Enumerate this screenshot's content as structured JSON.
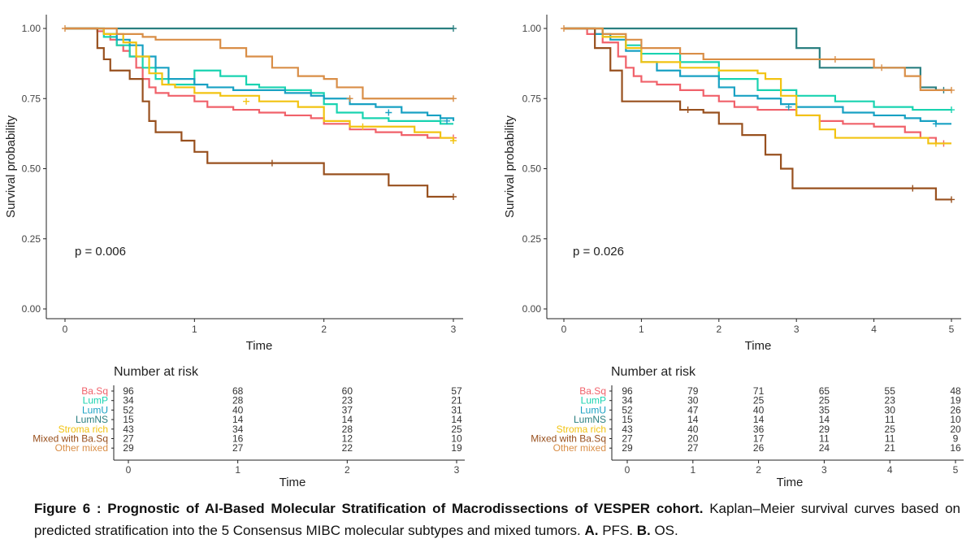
{
  "chart_data": [
    {
      "type": "line",
      "panel": "A",
      "annotation": "p = 0.006",
      "xlabel": "Time",
      "ylabel": "Survival probability",
      "xlim": [
        0,
        3
      ],
      "ylim": [
        0,
        1
      ],
      "xticks": [
        "0",
        "1",
        "2",
        "3"
      ],
      "yticks": [
        "0.00",
        "0.25",
        "0.50",
        "0.75",
        "1.00"
      ],
      "grid": false,
      "step": true,
      "series": [
        {
          "name": "Ba.Sq",
          "color": "#f0616a",
          "x": [
            0,
            0.25,
            0.3,
            0.35,
            0.4,
            0.45,
            0.5,
            0.55,
            0.6,
            0.65,
            0.7,
            0.8,
            1.0,
            1.1,
            1.3,
            1.5,
            1.7,
            1.9,
            2.0,
            2.2,
            2.4,
            2.6,
            2.8,
            3.0
          ],
          "y": [
            1.0,
            0.99,
            0.98,
            0.96,
            0.94,
            0.92,
            0.9,
            0.86,
            0.82,
            0.79,
            0.77,
            0.76,
            0.74,
            0.72,
            0.71,
            0.7,
            0.69,
            0.68,
            0.66,
            0.64,
            0.63,
            0.62,
            0.61,
            0.61
          ],
          "censor": [
            [
              3.0,
              0.61
            ]
          ]
        },
        {
          "name": "LumP",
          "color": "#19d3b0",
          "x": [
            0,
            0.3,
            0.4,
            0.5,
            0.6,
            0.7,
            0.8,
            1.0,
            1.2,
            1.4,
            1.5,
            1.7,
            1.9,
            2.0,
            2.1,
            2.3,
            2.5,
            2.7,
            2.9,
            3.0
          ],
          "y": [
            1.0,
            0.97,
            0.94,
            0.9,
            0.86,
            0.82,
            0.8,
            0.85,
            0.83,
            0.8,
            0.79,
            0.78,
            0.77,
            0.73,
            0.7,
            0.68,
            0.67,
            0.67,
            0.66,
            0.66
          ],
          "censor": [
            [
              2.9,
              0.67
            ]
          ]
        },
        {
          "name": "LumU",
          "color": "#18a1c3",
          "x": [
            0,
            0.3,
            0.4,
            0.5,
            0.6,
            0.7,
            0.8,
            1.0,
            1.1,
            1.3,
            1.5,
            1.7,
            1.9,
            2.0,
            2.2,
            2.4,
            2.6,
            2.8,
            2.9,
            3.0
          ],
          "y": [
            1.0,
            0.98,
            0.96,
            0.94,
            0.9,
            0.86,
            0.82,
            0.8,
            0.79,
            0.78,
            0.78,
            0.77,
            0.76,
            0.75,
            0.73,
            0.72,
            0.7,
            0.69,
            0.68,
            0.67
          ],
          "censor": [
            [
              2.5,
              0.7
            ],
            [
              2.95,
              0.67
            ]
          ]
        },
        {
          "name": "LumNS",
          "color": "#2a7f80",
          "x": [
            0,
            3.0
          ],
          "y": [
            1.0,
            1.0
          ],
          "censor": [
            [
              3.0,
              1.0
            ]
          ]
        },
        {
          "name": "Stroma rich",
          "color": "#f2c311",
          "x": [
            0,
            0.3,
            0.45,
            0.55,
            0.65,
            0.75,
            0.85,
            1.0,
            1.2,
            1.5,
            1.8,
            2.0,
            2.2,
            2.5,
            2.7,
            2.9,
            3.0
          ],
          "y": [
            1.0,
            0.98,
            0.95,
            0.9,
            0.84,
            0.8,
            0.79,
            0.77,
            0.76,
            0.74,
            0.72,
            0.67,
            0.65,
            0.65,
            0.63,
            0.61,
            0.6
          ],
          "censor": [
            [
              1.4,
              0.74
            ],
            [
              2.3,
              0.65
            ],
            [
              3.0,
              0.6
            ]
          ]
        },
        {
          "name": "Mixed with Ba.Sq",
          "color": "#98501e",
          "x": [
            0,
            0.25,
            0.3,
            0.35,
            0.5,
            0.6,
            0.65,
            0.7,
            0.9,
            1.0,
            1.1,
            1.3,
            1.5,
            1.8,
            2.0,
            2.3,
            2.5,
            2.8,
            3.0
          ],
          "y": [
            1.0,
            0.93,
            0.89,
            0.85,
            0.82,
            0.74,
            0.67,
            0.63,
            0.6,
            0.56,
            0.52,
            0.52,
            0.52,
            0.52,
            0.48,
            0.48,
            0.44,
            0.4,
            0.4
          ],
          "censor": [
            [
              1.6,
              0.52
            ],
            [
              3.0,
              0.4
            ]
          ]
        },
        {
          "name": "Other mixed",
          "color": "#d98e47",
          "x": [
            0,
            0.4,
            0.6,
            0.7,
            1.0,
            1.2,
            1.4,
            1.6,
            1.8,
            2.0,
            2.1,
            2.3,
            2.5,
            3.0
          ],
          "y": [
            1.0,
            0.98,
            0.97,
            0.96,
            0.96,
            0.93,
            0.9,
            0.86,
            0.83,
            0.82,
            0.79,
            0.75,
            0.75,
            0.75
          ],
          "censor": [
            [
              2.2,
              0.75
            ],
            [
              3.0,
              0.75
            ]
          ]
        }
      ],
      "risk_table": {
        "title": "Number at risk",
        "xlabel": "Time",
        "times": [
          "0",
          "1",
          "2",
          "3"
        ],
        "rows": [
          {
            "label": "Ba.Sq",
            "color": "#f0616a",
            "values": [
              "96",
              "68",
              "60",
              "57"
            ]
          },
          {
            "label": "LumP",
            "color": "#19d3b0",
            "values": [
              "34",
              "28",
              "23",
              "21"
            ]
          },
          {
            "label": "LumU",
            "color": "#18a1c3",
            "values": [
              "52",
              "40",
              "37",
              "31"
            ]
          },
          {
            "label": "LumNS",
            "color": "#2a7f80",
            "values": [
              "15",
              "14",
              "14",
              "14"
            ]
          },
          {
            "label": "Stroma rich",
            "color": "#f2c311",
            "values": [
              "43",
              "34",
              "28",
              "25"
            ]
          },
          {
            "label": "Mixed with Ba.Sq",
            "color": "#98501e",
            "values": [
              "27",
              "16",
              "12",
              "10"
            ]
          },
          {
            "label": "Other mixed",
            "color": "#d98e47",
            "values": [
              "29",
              "27",
              "22",
              "19"
            ]
          }
        ]
      }
    },
    {
      "type": "line",
      "panel": "B",
      "annotation": "p = 0.026",
      "xlabel": "Time",
      "ylabel": "Survival probability",
      "xlim": [
        0,
        5
      ],
      "ylim": [
        0,
        1
      ],
      "xticks": [
        "0",
        "1",
        "2",
        "3",
        "4",
        "5"
      ],
      "yticks": [
        "0.00",
        "0.25",
        "0.50",
        "0.75",
        "1.00"
      ],
      "grid": false,
      "step": true,
      "series": [
        {
          "name": "Ba.Sq",
          "color": "#f0616a",
          "x": [
            0,
            0.3,
            0.5,
            0.7,
            0.8,
            0.9,
            1.0,
            1.2,
            1.5,
            1.8,
            2.0,
            2.2,
            2.5,
            3.0,
            3.3,
            3.6,
            4.0,
            4.4,
            4.6,
            4.8,
            5.0
          ],
          "y": [
            1.0,
            0.98,
            0.95,
            0.9,
            0.86,
            0.83,
            0.81,
            0.8,
            0.78,
            0.76,
            0.74,
            0.72,
            0.71,
            0.69,
            0.67,
            0.66,
            0.65,
            0.63,
            0.61,
            0.59,
            0.59
          ],
          "censor": [
            [
              4.9,
              0.59
            ]
          ]
        },
        {
          "name": "LumP",
          "color": "#19d3b0",
          "x": [
            0,
            0.5,
            0.8,
            1.0,
            1.5,
            2.0,
            2.5,
            3.0,
            3.5,
            4.0,
            4.5,
            5.0
          ],
          "y": [
            1.0,
            0.97,
            0.94,
            0.91,
            0.88,
            0.82,
            0.78,
            0.76,
            0.74,
            0.72,
            0.71,
            0.71
          ],
          "censor": [
            [
              5.0,
              0.71
            ]
          ]
        },
        {
          "name": "LumU",
          "color": "#18a1c3",
          "x": [
            0,
            0.4,
            0.6,
            0.8,
            1.0,
            1.2,
            1.5,
            2.0,
            2.2,
            2.5,
            2.8,
            3.0,
            3.3,
            3.6,
            4.0,
            4.4,
            4.6,
            4.8,
            5.0
          ],
          "y": [
            1.0,
            0.98,
            0.96,
            0.92,
            0.88,
            0.85,
            0.83,
            0.79,
            0.76,
            0.75,
            0.73,
            0.72,
            0.72,
            0.7,
            0.69,
            0.68,
            0.67,
            0.66,
            0.66
          ],
          "censor": [
            [
              2.9,
              0.72
            ],
            [
              4.8,
              0.66
            ]
          ]
        },
        {
          "name": "LumNS",
          "color": "#2a7f80",
          "x": [
            0,
            3.0,
            3.3,
            4.6,
            4.8,
            5.0
          ],
          "y": [
            1.0,
            0.93,
            0.86,
            0.79,
            0.78,
            0.78
          ],
          "censor": [
            [
              4.9,
              0.78
            ]
          ]
        },
        {
          "name": "Stroma rich",
          "color": "#f2c311",
          "x": [
            0,
            0.5,
            0.8,
            1.0,
            1.5,
            2.0,
            2.5,
            2.6,
            2.8,
            3.0,
            3.3,
            3.5,
            3.8,
            4.0,
            4.4,
            4.7,
            5.0
          ],
          "y": [
            1.0,
            0.97,
            0.93,
            0.88,
            0.86,
            0.85,
            0.84,
            0.82,
            0.76,
            0.69,
            0.64,
            0.61,
            0.61,
            0.61,
            0.61,
            0.59,
            0.59
          ],
          "censor": [
            [
              4.8,
              0.59
            ]
          ]
        },
        {
          "name": "Mixed with Ba.Sq",
          "color": "#98501e",
          "x": [
            0,
            0.4,
            0.6,
            0.75,
            1.0,
            1.5,
            1.8,
            2.0,
            2.3,
            2.6,
            2.8,
            2.95,
            3.3,
            3.8,
            4.2,
            4.6,
            4.8,
            5.0
          ],
          "y": [
            1.0,
            0.93,
            0.85,
            0.74,
            0.74,
            0.71,
            0.7,
            0.66,
            0.62,
            0.55,
            0.5,
            0.43,
            0.43,
            0.43,
            0.43,
            0.43,
            0.39,
            0.39
          ],
          "censor": [
            [
              1.6,
              0.71
            ],
            [
              4.5,
              0.43
            ],
            [
              5.0,
              0.39
            ]
          ]
        },
        {
          "name": "Other mixed",
          "color": "#d98e47",
          "x": [
            0,
            0.5,
            0.8,
            1.0,
            1.5,
            1.8,
            2.5,
            3.0,
            3.3,
            3.6,
            4.0,
            4.4,
            4.6,
            4.9,
            5.0
          ],
          "y": [
            1.0,
            0.98,
            0.96,
            0.93,
            0.91,
            0.89,
            0.89,
            0.89,
            0.89,
            0.89,
            0.86,
            0.83,
            0.78,
            0.78,
            0.78
          ],
          "censor": [
            [
              3.5,
              0.89
            ],
            [
              4.1,
              0.86
            ],
            [
              5.0,
              0.78
            ]
          ]
        }
      ],
      "risk_table": {
        "title": "Number at risk",
        "xlabel": "Time",
        "times": [
          "0",
          "1",
          "2",
          "3",
          "4",
          "5"
        ],
        "rows": [
          {
            "label": "Ba.Sq",
            "color": "#f0616a",
            "values": [
              "96",
              "79",
              "71",
              "65",
              "55",
              "48"
            ]
          },
          {
            "label": "LumP",
            "color": "#19d3b0",
            "values": [
              "34",
              "30",
              "25",
              "25",
              "23",
              "19"
            ]
          },
          {
            "label": "LumU",
            "color": "#18a1c3",
            "values": [
              "52",
              "47",
              "40",
              "35",
              "30",
              "26"
            ]
          },
          {
            "label": "LumNS",
            "color": "#2a7f80",
            "values": [
              "15",
              "14",
              "14",
              "14",
              "11",
              "10"
            ]
          },
          {
            "label": "Stroma rich",
            "color": "#f2c311",
            "values": [
              "43",
              "40",
              "36",
              "29",
              "25",
              "20"
            ]
          },
          {
            "label": "Mixed with Ba.Sq",
            "color": "#98501e",
            "values": [
              "27",
              "20",
              "17",
              "11",
              "11",
              "9"
            ]
          },
          {
            "label": "Other mixed",
            "color": "#d98e47",
            "values": [
              "29",
              "27",
              "26",
              "24",
              "21",
              "16"
            ]
          }
        ]
      }
    }
  ],
  "caption": {
    "bold": "Figure 6 : Prognostic of AI-Based Molecular Stratification of Macrodissections of VESPER cohort.",
    "text1": " Kaplan–Meier survival curves based on predicted stratification into the 5 Consensus MIBC molecular subtypes and mixed tumors. ",
    "a_label": "A.",
    "a_text": " PFS. ",
    "b_label": "B.",
    "b_text": " OS."
  }
}
